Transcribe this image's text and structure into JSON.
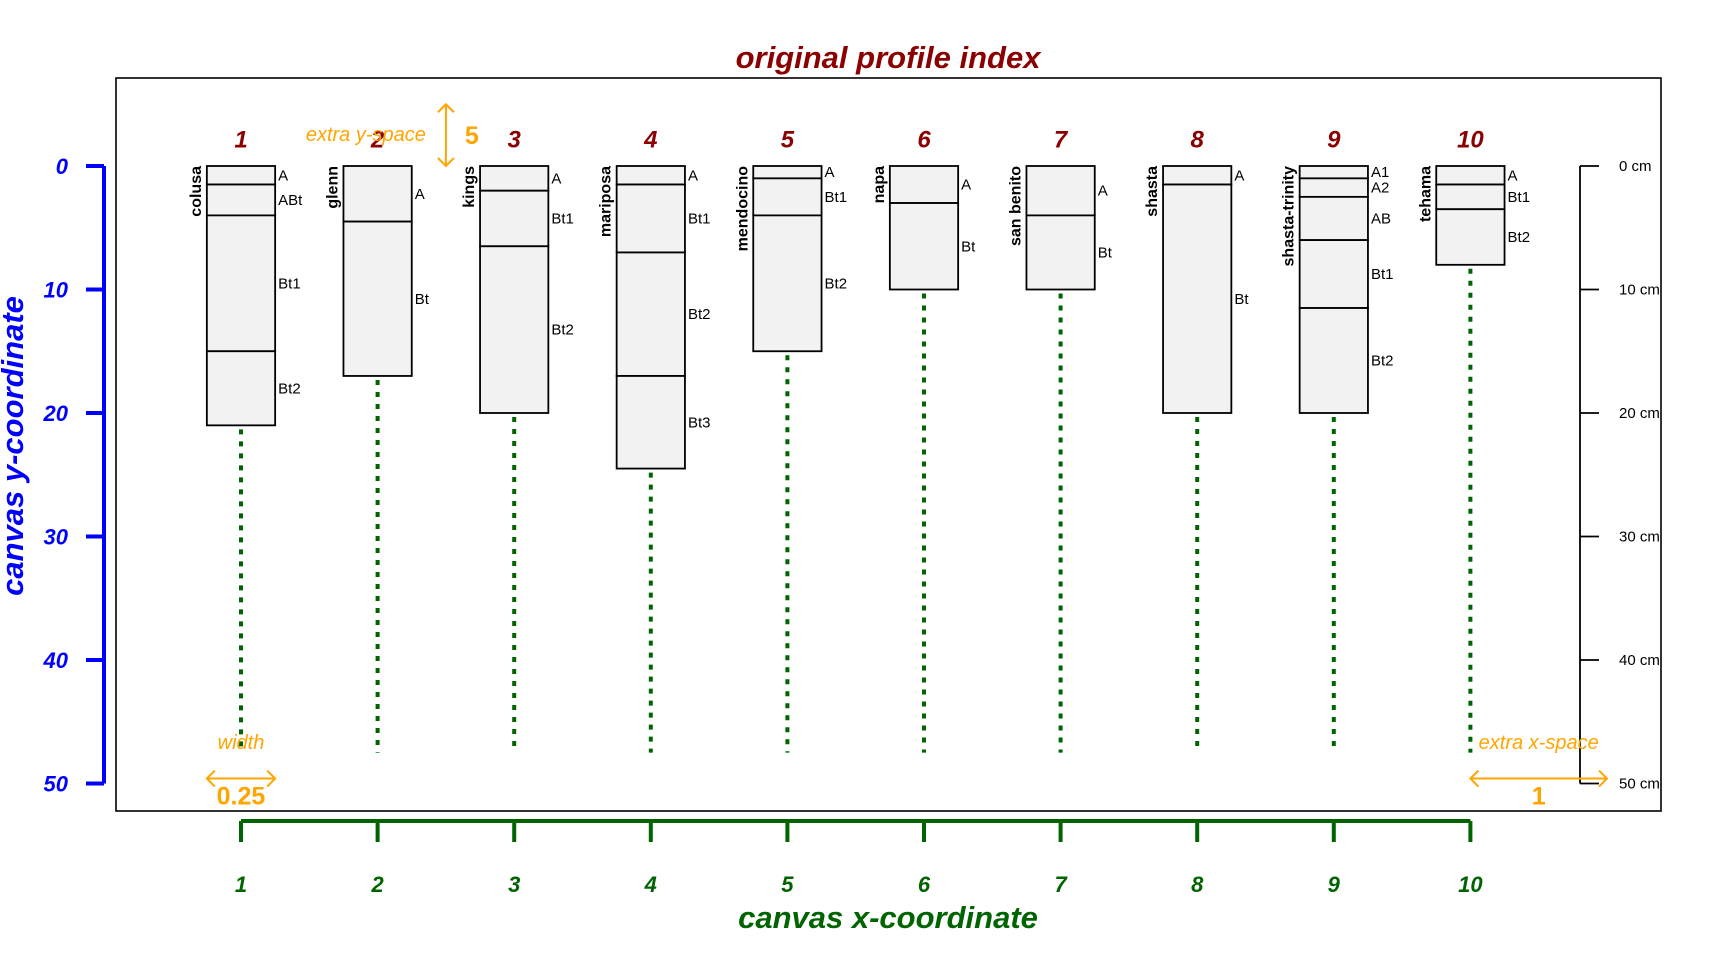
{
  "chart_data": {
    "type": "soil-profile-sketch",
    "title": "original profile index",
    "xlabel": "canvas x-coordinate",
    "ylabel": "canvas y-coordinate",
    "x_ticks": [
      1,
      2,
      3,
      4,
      5,
      6,
      7,
      8,
      9,
      10
    ],
    "y_ticks": [
      0,
      10,
      20,
      30,
      40,
      50
    ],
    "xlim": [
      0.1,
      11.5
    ],
    "ylim": [
      -7,
      52
    ],
    "profiles": [
      {
        "index": "1",
        "name": "colusa",
        "horizons": [
          {
            "name": "A",
            "top": 0,
            "bottom": 1.5
          },
          {
            "name": "ABt",
            "top": 1.5,
            "bottom": 4
          },
          {
            "name": "Bt1",
            "top": 4,
            "bottom": 15
          },
          {
            "name": "Bt2",
            "top": 15,
            "bottom": 21
          }
        ]
      },
      {
        "index": "2",
        "name": "glenn",
        "horizons": [
          {
            "name": "A",
            "top": 0,
            "bottom": 4.5
          },
          {
            "name": "Bt",
            "top": 4.5,
            "bottom": 17
          }
        ]
      },
      {
        "index": "3",
        "name": "kings",
        "horizons": [
          {
            "name": "A",
            "top": 0,
            "bottom": 2
          },
          {
            "name": "Bt1",
            "top": 2,
            "bottom": 6.5
          },
          {
            "name": "Bt2",
            "top": 6.5,
            "bottom": 20
          }
        ]
      },
      {
        "index": "4",
        "name": "mariposa",
        "horizons": [
          {
            "name": "A",
            "top": 0,
            "bottom": 1.5
          },
          {
            "name": "Bt1",
            "top": 1.5,
            "bottom": 7
          },
          {
            "name": "Bt2",
            "top": 7,
            "bottom": 17
          },
          {
            "name": "Bt3",
            "top": 17,
            "bottom": 24.5
          }
        ]
      },
      {
        "index": "5",
        "name": "mendocino",
        "horizons": [
          {
            "name": "A",
            "top": 0,
            "bottom": 1
          },
          {
            "name": "Bt1",
            "top": 1,
            "bottom": 4
          },
          {
            "name": "Bt2",
            "top": 4,
            "bottom": 15
          }
        ]
      },
      {
        "index": "6",
        "name": "napa",
        "horizons": [
          {
            "name": "A",
            "top": 0,
            "bottom": 3
          },
          {
            "name": "Bt",
            "top": 3,
            "bottom": 10
          }
        ]
      },
      {
        "index": "7",
        "name": "san benito",
        "horizons": [
          {
            "name": "A",
            "top": 0,
            "bottom": 4
          },
          {
            "name": "Bt",
            "top": 4,
            "bottom": 10
          }
        ]
      },
      {
        "index": "8",
        "name": "shasta",
        "horizons": [
          {
            "name": "A",
            "top": 0,
            "bottom": 1.5
          },
          {
            "name": "Bt",
            "top": 1.5,
            "bottom": 20
          }
        ]
      },
      {
        "index": "9",
        "name": "shasta-trinity",
        "horizons": [
          {
            "name": "A1",
            "top": 0,
            "bottom": 1
          },
          {
            "name": "A2",
            "top": 1,
            "bottom": 2.5
          },
          {
            "name": "AB",
            "top": 2.5,
            "bottom": 6
          },
          {
            "name": "Bt1",
            "top": 6,
            "bottom": 11.5
          },
          {
            "name": "Bt2",
            "top": 11.5,
            "bottom": 20
          }
        ]
      },
      {
        "index": "10",
        "name": "tehama",
        "horizons": [
          {
            "name": "A",
            "top": 0,
            "bottom": 1.5
          },
          {
            "name": "Bt1",
            "top": 1.5,
            "bottom": 3.5
          },
          {
            "name": "Bt2",
            "top": 3.5,
            "bottom": 8
          }
        ]
      }
    ],
    "depth_scale": {
      "labels": [
        "0 cm",
        "10 cm",
        "20 cm",
        "30 cm",
        "40 cm",
        "50 cm"
      ],
      "values": [
        0,
        10,
        20,
        30,
        40,
        50
      ]
    },
    "annotations": {
      "extra_y_space": {
        "label": "extra y-space",
        "value": "5"
      },
      "width": {
        "label": "width",
        "value": "0.25"
      },
      "extra_x_space": {
        "label": "extra x-space",
        "value": "1"
      }
    },
    "colors": {
      "title": "#8B0000",
      "profile_index": "#8B0000",
      "y_axis": "#0000FF",
      "x_axis": "#006400",
      "annotation": "#FFA500",
      "profile_fill": "#F2F2F2",
      "dotted_line": "#006400"
    }
  }
}
